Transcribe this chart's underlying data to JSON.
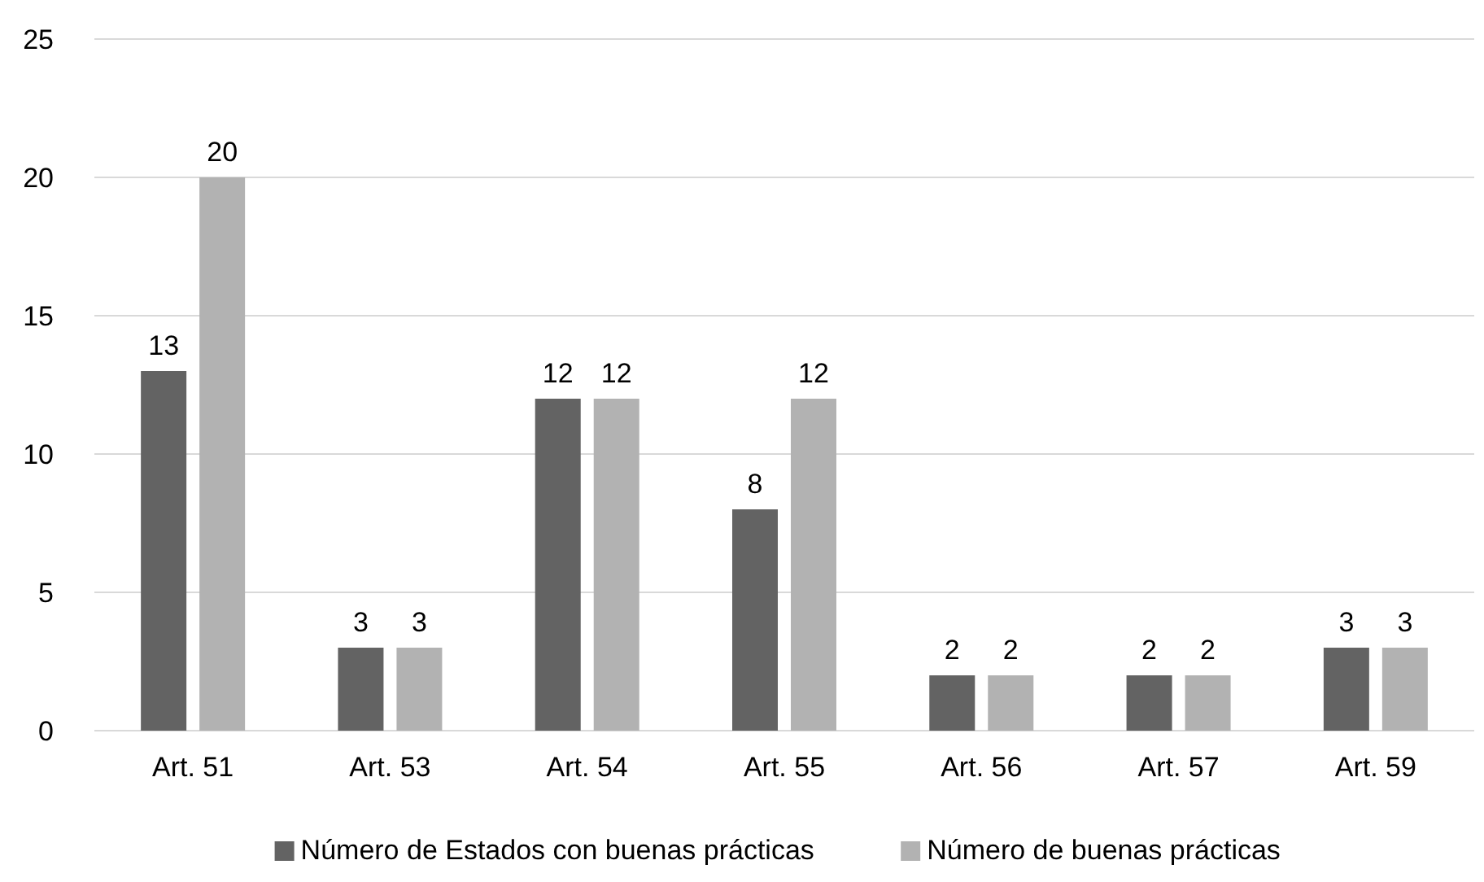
{
  "chart_data": {
    "type": "bar",
    "categories": [
      "Art. 51",
      "Art. 53",
      "Art. 54",
      "Art. 55",
      "Art. 56",
      "Art. 57",
      "Art. 59"
    ],
    "series": [
      {
        "name": "Número de Estados con buenas prácticas",
        "color": "#636363",
        "values": [
          13,
          3,
          12,
          8,
          2,
          2,
          3
        ]
      },
      {
        "name": "Número de buenas prácticas",
        "color": "#b2b2b2",
        "values": [
          20,
          3,
          12,
          12,
          2,
          2,
          3
        ]
      }
    ],
    "ylim": [
      0,
      25
    ],
    "yticks": [
      0,
      5,
      10,
      15,
      20,
      25
    ],
    "grid": "y",
    "legend": "bottom",
    "data_labels": true
  }
}
